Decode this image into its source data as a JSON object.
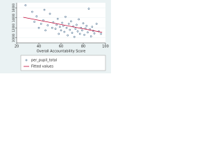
{
  "chart_data": {
    "type": "scatter",
    "x_label": "Overall Accountability Score",
    "xlim": [
      20,
      100
    ],
    "xticks": [
      20,
      40,
      60,
      80,
      100
    ],
    "ylim": [
      9000,
      17000
    ],
    "yticks": [
      10000,
      12000,
      14000,
      16000
    ],
    "grid": true,
    "series": [
      {
        "name": "per_pupil_total",
        "type": "scatter",
        "color": "#1a476f",
        "x": [
          28,
          34,
          36,
          38,
          40,
          42,
          44,
          45,
          46,
          48,
          50,
          52,
          53,
          55,
          56,
          57,
          58,
          59,
          60,
          61,
          62,
          63,
          64,
          65,
          66,
          67,
          68,
          69,
          70,
          71,
          72,
          73,
          74,
          75,
          76,
          77,
          78,
          79,
          80,
          81,
          82,
          83,
          84,
          85,
          86,
          87,
          88,
          89,
          90,
          92,
          94,
          96
        ],
        "values": [
          16500,
          15200,
          13200,
          14300,
          12000,
          12800,
          13500,
          15600,
          11500,
          12500,
          14800,
          12000,
          13100,
          11800,
          12600,
          13800,
          10800,
          12200,
          11500,
          13000,
          12400,
          11200,
          14200,
          12000,
          10500,
          12800,
          11600,
          13300,
          11000,
          12300,
          10200,
          11800,
          12600,
          11300,
          13700,
          10800,
          12000,
          11500,
          12900,
          10600,
          11900,
          12400,
          11100,
          15800,
          11700,
          10300,
          12200,
          11400,
          10900,
          12800,
          11300,
          10800
        ]
      },
      {
        "name": "Fitted values",
        "type": "line",
        "color": "#c10534",
        "x": [
          26,
          97
        ],
        "values": [
          14100,
          11100
        ]
      }
    ]
  }
}
